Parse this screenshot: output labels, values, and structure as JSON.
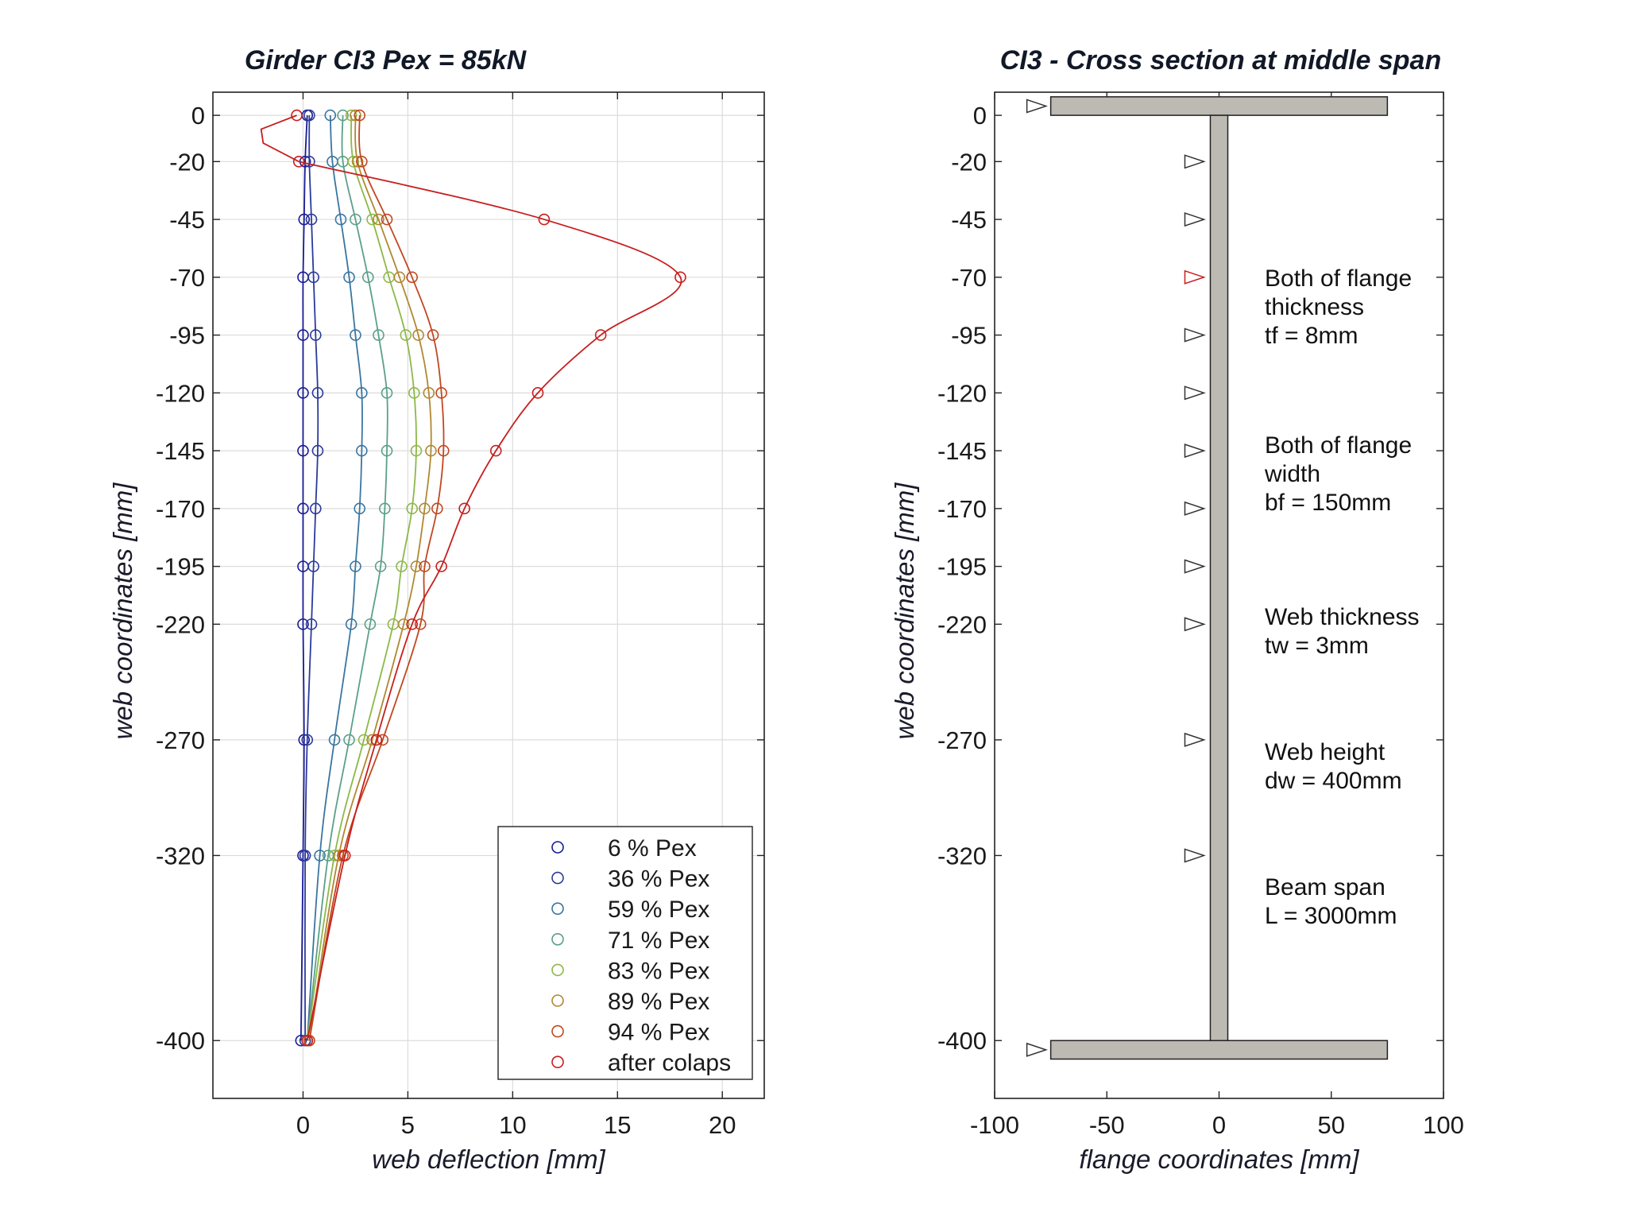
{
  "chart_data": [
    {
      "type": "line",
      "title": "Girder  CI3        Pex = 85kN",
      "xlabel": "web deflection [mm]",
      "ylabel": "web coordinates [mm]",
      "xlim": [
        -4.3,
        22
      ],
      "ylim": [
        -425,
        10
      ],
      "xticks": [
        0,
        5,
        10,
        15,
        20
      ],
      "yticks": [
        0,
        -20,
        -45,
        -70,
        -95,
        -120,
        -145,
        -170,
        -195,
        -220,
        -270,
        -320,
        -400
      ],
      "grid": true,
      "legend_position": "bottom-right",
      "y": [
        0,
        -20,
        -45,
        -70,
        -95,
        -120,
        -145,
        -170,
        -195,
        -220,
        -270,
        -320,
        -400
      ],
      "series": [
        {
          "name": "6   % Pex",
          "color": "#1a1a96",
          "values": [
            0.2,
            0.1,
            0.05,
            0.0,
            0.0,
            0.0,
            0.0,
            0.0,
            0.0,
            0.0,
            0.05,
            0.0,
            -0.1
          ]
        },
        {
          "name": "36 % Pex",
          "color": "#2a3a9a",
          "values": [
            0.3,
            0.3,
            0.4,
            0.5,
            0.6,
            0.7,
            0.7,
            0.6,
            0.5,
            0.4,
            0.2,
            0.1,
            0.1
          ]
        },
        {
          "name": "59 % Pex",
          "color": "#3a75a0",
          "values": [
            1.3,
            1.4,
            1.8,
            2.2,
            2.5,
            2.8,
            2.8,
            2.7,
            2.5,
            2.3,
            1.5,
            0.8,
            0.2
          ]
        },
        {
          "name": "71 % Pex",
          "color": "#5aa088",
          "values": [
            1.9,
            1.9,
            2.5,
            3.1,
            3.6,
            4.0,
            4.0,
            3.9,
            3.7,
            3.2,
            2.2,
            1.2,
            0.2
          ]
        },
        {
          "name": "83 % Pex",
          "color": "#8db848",
          "values": [
            2.3,
            2.4,
            3.3,
            4.1,
            4.9,
            5.3,
            5.4,
            5.2,
            4.7,
            4.3,
            2.9,
            1.5,
            0.2
          ]
        },
        {
          "name": "89 % Pex",
          "color": "#b08830",
          "values": [
            2.5,
            2.6,
            3.6,
            4.6,
            5.5,
            6.0,
            6.1,
            5.8,
            5.4,
            4.8,
            3.3,
            1.7,
            0.3
          ]
        },
        {
          "name": "94 % Pex",
          "color": "#c04820",
          "values": [
            2.7,
            2.8,
            4.0,
            5.2,
            6.2,
            6.6,
            6.7,
            6.4,
            5.8,
            5.6,
            3.8,
            1.9,
            0.3
          ]
        },
        {
          "name": "after colaps",
          "color": "#c81e1e",
          "values": [
            -0.3,
            -0.2,
            11.5,
            18.0,
            14.2,
            11.2,
            9.2,
            7.7,
            6.6,
            5.2,
            3.5,
            2.0,
            0.2
          ]
        }
      ]
    },
    {
      "type": "diagram",
      "title": "CI3 - Cross section at middle span",
      "xlabel": "flange coordinates [mm]",
      "ylabel": "web coordinates [mm]",
      "xlim": [
        -100,
        100
      ],
      "ylim": [
        -425,
        10
      ],
      "xticks": [
        -100,
        -50,
        0,
        50,
        100
      ],
      "yticks": [
        0,
        -20,
        -45,
        -70,
        -95,
        -120,
        -145,
        -170,
        -195,
        -220,
        -270,
        -320,
        -400
      ],
      "grid": false,
      "flange_halfwidth": 75,
      "flange_thickness": 8,
      "web_thickness": 3,
      "marker_y": [
        4,
        -20,
        -45,
        -70,
        -95,
        -120,
        -145,
        -170,
        -195,
        -220,
        -270,
        -320,
        -404
      ],
      "marker_highlight_y": -70,
      "annotations": [
        [
          "Both of flange",
          "thickness",
          "tf = 8mm"
        ],
        [
          "Both of flange",
          "width",
          "bf = 150mm"
        ],
        [
          "Web thickness",
          "tw = 3mm"
        ],
        [
          "Web height",
          "dw = 400mm"
        ],
        [
          "Beam span",
          "L = 3000mm"
        ]
      ]
    }
  ]
}
